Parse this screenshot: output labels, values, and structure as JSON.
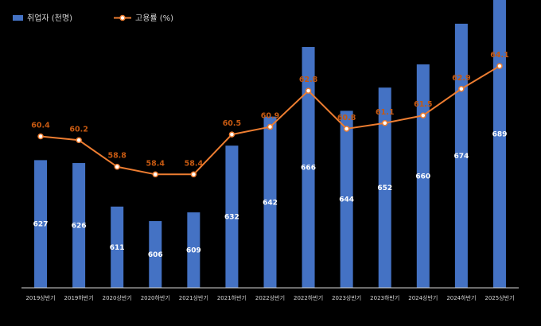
{
  "chart_data": {
    "type": "bar",
    "categories": [
      "2019상반기",
      "2019하반기",
      "2020상반기",
      "2020하반기",
      "2021상반기",
      "2021하반기",
      "2022상반기",
      "2022하반기",
      "2023상반기",
      "2023하반기",
      "2024상반기",
      "2024하반기",
      "2025상반기"
    ],
    "series": [
      {
        "name": "취업자 (천명)",
        "type": "bar",
        "values": [
          627,
          626,
          611,
          606,
          609,
          632,
          642,
          666,
          644,
          652,
          660,
          674,
          689
        ]
      },
      {
        "name": "고용률 (%)",
        "type": "line",
        "values": [
          60.4,
          60.2,
          58.8,
          58.4,
          58.4,
          60.5,
          60.9,
          62.8,
          60.8,
          61.1,
          61.5,
          62.9,
          64.1
        ]
      }
    ],
    "title": "",
    "xlabel": "",
    "ylabel": "",
    "legend_position": "top-left",
    "grid": false,
    "colors": {
      "bar": "#4472c4",
      "line": "#ed7d31",
      "line_label": "#c65911",
      "background": "#000000"
    }
  }
}
